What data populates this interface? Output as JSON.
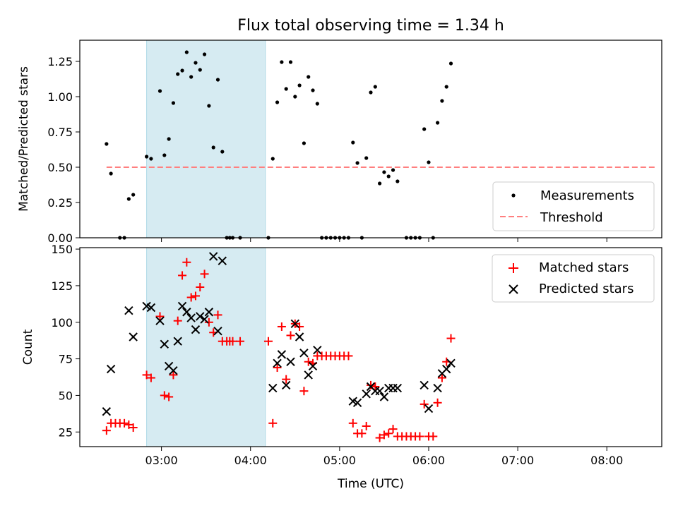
{
  "chart_data": [
    {
      "type": "scatter",
      "title": "Flux total observing time = 1.34 h",
      "xlabel": "",
      "ylabel": "Matched/Predicted stars",
      "xlim": [
        "02:05",
        "08:37"
      ],
      "ylim": [
        0,
        1.4
      ],
      "x_ticks": [
        "03:00",
        "04:00",
        "05:00",
        "06:00",
        "07:00",
        "08:00"
      ],
      "y_ticks": [
        "0.00",
        "0.25",
        "0.50",
        "0.75",
        "1.00",
        "1.25"
      ],
      "highlight_span": [
        "02:50",
        "04:10"
      ],
      "legend_position": "lower right",
      "grid": false,
      "colors": {
        "measurements": "#000000",
        "threshold": "#ff7f7f",
        "span": "#add8e6"
      },
      "threshold": {
        "name": "Threshold",
        "value": 0.5,
        "x": [
          "02:23",
          "08:33"
        ]
      },
      "series": [
        {
          "name": "Measurements",
          "points": [
            [
              "02:23",
              0.665
            ],
            [
              "02:26",
              0.455
            ],
            [
              "02:32",
              0.0
            ],
            [
              "02:35",
              0.0
            ],
            [
              "02:38",
              0.275
            ],
            [
              "02:41",
              0.305
            ],
            [
              "02:50",
              0.575
            ],
            [
              "02:53",
              0.56
            ],
            [
              "02:59",
              1.04
            ],
            [
              "03:02",
              0.585
            ],
            [
              "03:05",
              0.7
            ],
            [
              "03:08",
              0.955
            ],
            [
              "03:11",
              1.16
            ],
            [
              "03:14",
              1.185
            ],
            [
              "03:17",
              1.315
            ],
            [
              "03:20",
              1.14
            ],
            [
              "03:23",
              1.24
            ],
            [
              "03:26",
              1.19
            ],
            [
              "03:29",
              1.3
            ],
            [
              "03:32",
              0.935
            ],
            [
              "03:35",
              0.64
            ],
            [
              "03:38",
              1.12
            ],
            [
              "03:41",
              0.61
            ],
            [
              "03:44",
              0.0
            ],
            [
              "03:46",
              0.0
            ],
            [
              "03:48",
              0.0
            ],
            [
              "03:53",
              0.0
            ],
            [
              "04:12",
              0.0
            ],
            [
              "04:15",
              0.56
            ],
            [
              "04:18",
              0.96
            ],
            [
              "04:21",
              1.245
            ],
            [
              "04:24",
              1.055
            ],
            [
              "04:27",
              1.245
            ],
            [
              "04:30",
              1.0
            ],
            [
              "04:33",
              1.08
            ],
            [
              "04:36",
              0.67
            ],
            [
              "04:39",
              1.14
            ],
            [
              "04:42",
              1.045
            ],
            [
              "04:45",
              0.95
            ],
            [
              "04:48",
              0.0
            ],
            [
              "04:51",
              0.0
            ],
            [
              "04:54",
              0.0
            ],
            [
              "04:57",
              0.0
            ],
            [
              "05:00",
              0.0
            ],
            [
              "05:03",
              0.0
            ],
            [
              "05:06",
              0.0
            ],
            [
              "05:09",
              0.675
            ],
            [
              "05:12",
              0.53
            ],
            [
              "05:15",
              0.0
            ],
            [
              "05:18",
              0.565
            ],
            [
              "05:21",
              1.03
            ],
            [
              "05:24",
              1.07
            ],
            [
              "05:27",
              0.385
            ],
            [
              "05:30",
              0.465
            ],
            [
              "05:33",
              0.435
            ],
            [
              "05:36",
              0.48
            ],
            [
              "05:39",
              0.4
            ],
            [
              "05:45",
              0.0
            ],
            [
              "05:48",
              0.0
            ],
            [
              "05:51",
              0.0
            ],
            [
              "05:54",
              0.0
            ],
            [
              "05:57",
              0.77
            ],
            [
              "06:00",
              0.535
            ],
            [
              "06:03",
              0.0
            ],
            [
              "06:06",
              0.815
            ],
            [
              "06:09",
              0.97
            ],
            [
              "06:12",
              1.07
            ],
            [
              "06:15",
              1.235
            ]
          ]
        }
      ]
    },
    {
      "type": "scatter",
      "title": "",
      "xlabel": "Time (UTC)",
      "ylabel": "Count",
      "xlim": [
        "02:05",
        "08:37"
      ],
      "ylim": [
        15,
        151
      ],
      "x_ticks": [
        "03:00",
        "04:00",
        "05:00",
        "06:00",
        "07:00",
        "08:00"
      ],
      "y_ticks": [
        "25",
        "50",
        "75",
        "100",
        "125",
        "150"
      ],
      "highlight_span": [
        "02:50",
        "04:10"
      ],
      "legend_position": "upper right",
      "grid": false,
      "colors": {
        "matched": "#ff0000",
        "predicted": "#000000",
        "span": "#add8e6"
      },
      "series": [
        {
          "name": "Matched stars",
          "marker": "+",
          "points": [
            [
              "02:23",
              26
            ],
            [
              "02:26",
              31
            ],
            [
              "02:29",
              31
            ],
            [
              "02:32",
              31
            ],
            [
              "02:35",
              31
            ],
            [
              "02:38",
              30
            ],
            [
              "02:41",
              28
            ],
            [
              "02:50",
              64
            ],
            [
              "02:53",
              62
            ],
            [
              "02:59",
              104
            ],
            [
              "03:02",
              50
            ],
            [
              "03:05",
              49
            ],
            [
              "03:08",
              64
            ],
            [
              "03:11",
              101
            ],
            [
              "03:14",
              132
            ],
            [
              "03:17",
              141
            ],
            [
              "03:20",
              117
            ],
            [
              "03:23",
              118
            ],
            [
              "03:26",
              124
            ],
            [
              "03:29",
              133
            ],
            [
              "03:32",
              100
            ],
            [
              "03:35",
              93
            ],
            [
              "03:38",
              105
            ],
            [
              "03:41",
              87
            ],
            [
              "03:44",
              87
            ],
            [
              "03:46",
              87
            ],
            [
              "03:48",
              87
            ],
            [
              "03:53",
              87
            ],
            [
              "04:12",
              87
            ],
            [
              "04:15",
              31
            ],
            [
              "04:18",
              69
            ],
            [
              "04:21",
              97
            ],
            [
              "04:24",
              61
            ],
            [
              "04:27",
              91
            ],
            [
              "04:30",
              99
            ],
            [
              "04:33",
              97
            ],
            [
              "04:36",
              53
            ],
            [
              "04:39",
              73
            ],
            [
              "04:42",
              72
            ],
            [
              "04:45",
              77
            ],
            [
              "04:48",
              77
            ],
            [
              "04:51",
              77
            ],
            [
              "04:54",
              77
            ],
            [
              "04:57",
              77
            ],
            [
              "05:00",
              77
            ],
            [
              "05:03",
              77
            ],
            [
              "05:06",
              77
            ],
            [
              "05:09",
              31
            ],
            [
              "05:12",
              24
            ],
            [
              "05:15",
              24
            ],
            [
              "05:18",
              29
            ],
            [
              "05:21",
              57
            ],
            [
              "05:24",
              56
            ],
            [
              "05:27",
              21
            ],
            [
              "05:30",
              23
            ],
            [
              "05:33",
              24
            ],
            [
              "05:36",
              27
            ],
            [
              "05:39",
              22
            ],
            [
              "05:42",
              22
            ],
            [
              "05:45",
              22
            ],
            [
              "05:48",
              22
            ],
            [
              "05:51",
              22
            ],
            [
              "05:54",
              22
            ],
            [
              "05:57",
              44
            ],
            [
              "06:00",
              22
            ],
            [
              "06:03",
              22
            ],
            [
              "06:06",
              45
            ],
            [
              "06:09",
              62
            ],
            [
              "06:12",
              73
            ],
            [
              "06:15",
              89
            ]
          ]
        },
        {
          "name": "Predicted stars",
          "marker": "x",
          "points": [
            [
              "02:23",
              39
            ],
            [
              "02:26",
              68
            ],
            [
              "02:38",
              108
            ],
            [
              "02:41",
              90
            ],
            [
              "02:50",
              111
            ],
            [
              "02:53",
              110
            ],
            [
              "02:59",
              101
            ],
            [
              "03:02",
              85
            ],
            [
              "03:05",
              70
            ],
            [
              "03:08",
              67
            ],
            [
              "03:11",
              87
            ],
            [
              "03:14",
              111
            ],
            [
              "03:17",
              107
            ],
            [
              "03:20",
              103
            ],
            [
              "03:23",
              95
            ],
            [
              "03:26",
              104
            ],
            [
              "03:29",
              102
            ],
            [
              "03:32",
              107
            ],
            [
              "03:35",
              145
            ],
            [
              "03:38",
              94
            ],
            [
              "03:41",
              142
            ],
            [
              "04:15",
              55
            ],
            [
              "04:18",
              72
            ],
            [
              "04:21",
              78
            ],
            [
              "04:24",
              57
            ],
            [
              "04:27",
              73
            ],
            [
              "04:30",
              99
            ],
            [
              "04:33",
              90
            ],
            [
              "04:36",
              79
            ],
            [
              "04:39",
              64
            ],
            [
              "04:42",
              70
            ],
            [
              "04:45",
              81
            ],
            [
              "05:09",
              46
            ],
            [
              "05:12",
              45
            ],
            [
              "05:18",
              51
            ],
            [
              "05:21",
              56
            ],
            [
              "05:24",
              53
            ],
            [
              "05:27",
              53
            ],
            [
              "05:30",
              49
            ],
            [
              "05:33",
              55
            ],
            [
              "05:36",
              55
            ],
            [
              "05:39",
              55
            ],
            [
              "05:57",
              57
            ],
            [
              "06:00",
              41
            ],
            [
              "06:06",
              55
            ],
            [
              "06:09",
              65
            ],
            [
              "06:12",
              68
            ],
            [
              "06:15",
              72
            ]
          ]
        }
      ]
    }
  ]
}
